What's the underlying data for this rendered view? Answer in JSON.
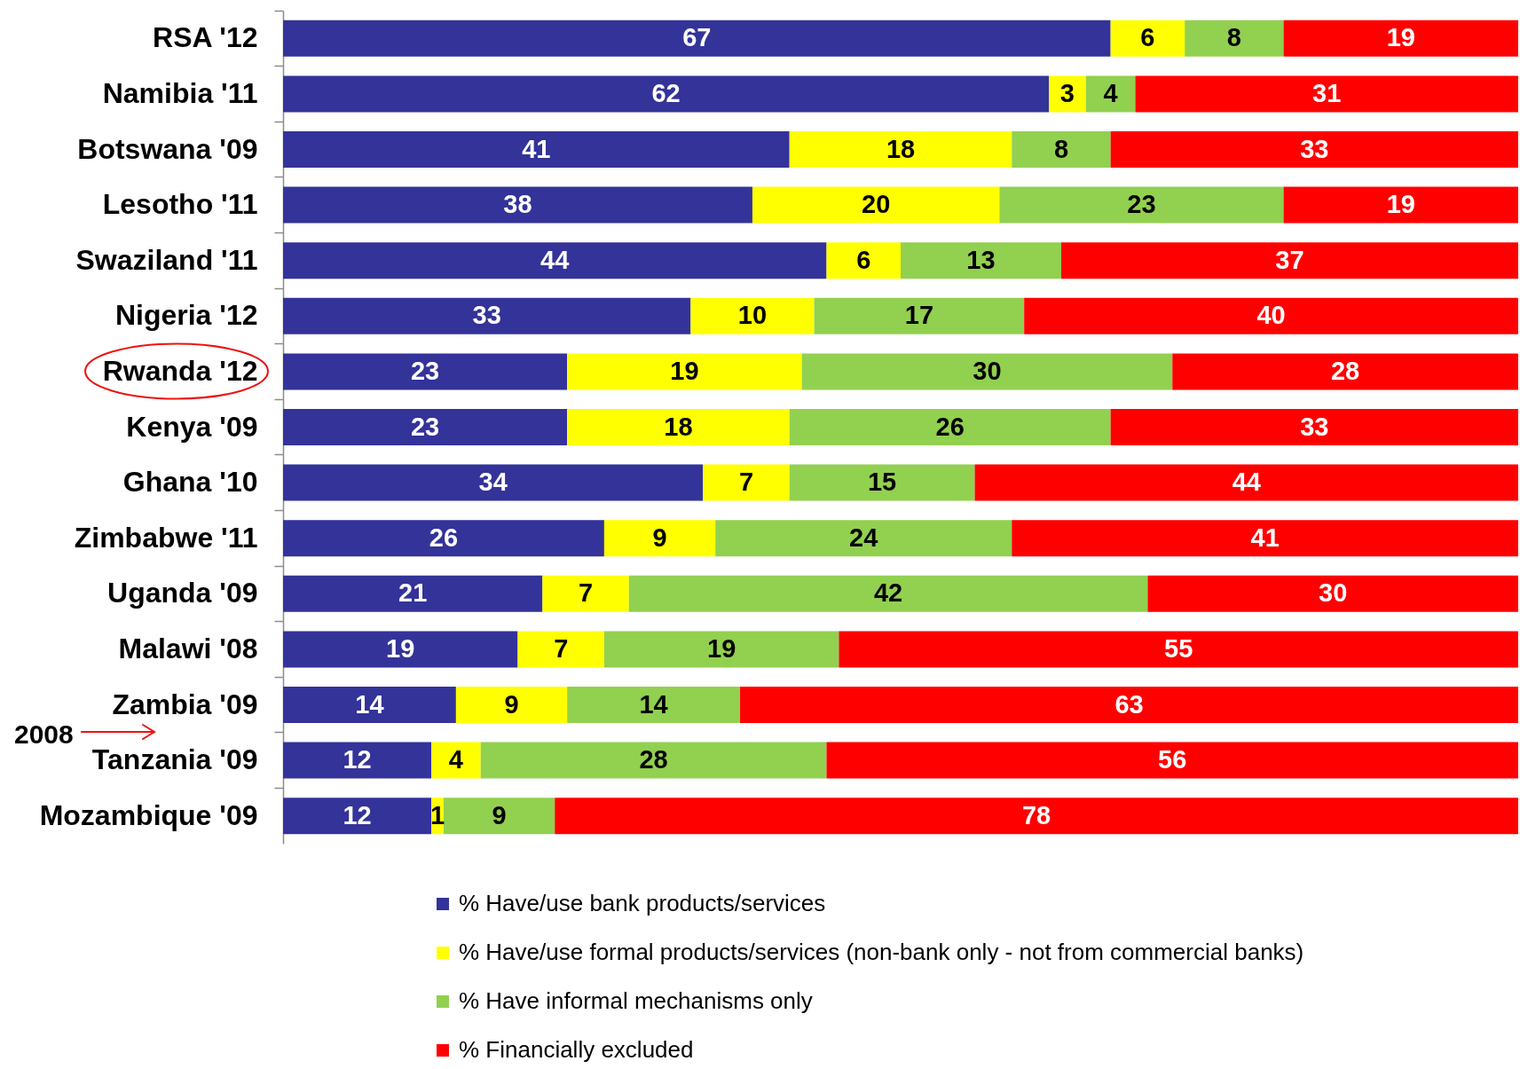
{
  "chart_data": {
    "type": "bar",
    "orientation": "horizontal",
    "stacked": true,
    "categories": [
      "RSA '12",
      "Namibia '11",
      "Botswana '09",
      "Lesotho '11",
      "Swaziland '11",
      "Nigeria '12",
      "Rwanda '12",
      "Kenya '09",
      "Ghana '10",
      "Zimbabwe '11",
      "Uganda '09",
      "Malawi '08",
      "Zambia '09",
      "Tanzania '09",
      "Mozambique '09"
    ],
    "series": [
      {
        "name": "% Have/use bank products/services",
        "color": "#333399",
        "values": [
          67,
          62,
          41,
          38,
          44,
          33,
          23,
          23,
          34,
          26,
          21,
          19,
          14,
          12,
          12
        ]
      },
      {
        "name": "% Have/use formal products/services (non-bank only - not from commercial banks)",
        "color": "#ffff00",
        "values": [
          6,
          3,
          18,
          20,
          6,
          10,
          19,
          18,
          7,
          9,
          7,
          7,
          9,
          4,
          1
        ]
      },
      {
        "name": "% Have informal mechanisms only",
        "color": "#92d050",
        "values": [
          8,
          4,
          8,
          23,
          13,
          17,
          30,
          26,
          15,
          24,
          42,
          19,
          14,
          28,
          9
        ]
      },
      {
        "name": "% Financially excluded",
        "color": "#ff0000",
        "values": [
          19,
          31,
          33,
          19,
          37,
          40,
          28,
          33,
          44,
          41,
          30,
          55,
          63,
          56,
          78
        ]
      }
    ],
    "xlim": [
      0,
      100
    ],
    "data_labels": true,
    "tick_labels": "y",
    "legend": "bottom",
    "annotations": [
      "2008"
    ]
  }
}
